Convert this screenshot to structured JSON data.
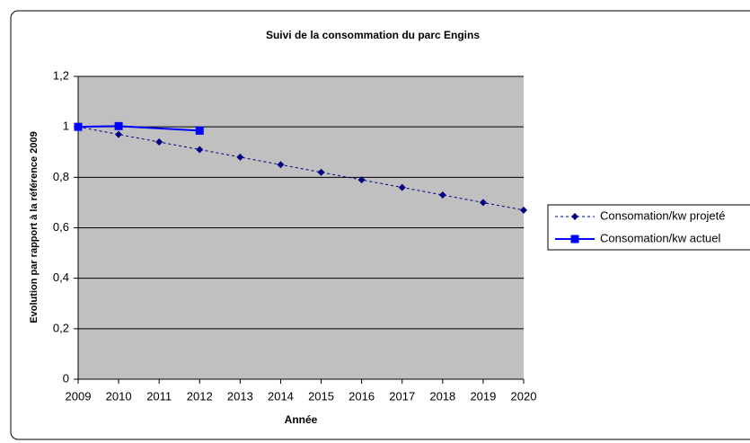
{
  "chart_data": {
    "type": "line",
    "title": "Suivi de la consommation du parc Engins",
    "xlabel": "Année",
    "ylabel": "Evolution par rapport à la référence 2009",
    "series": [
      {
        "name": "Consomation/kw projeté",
        "color": "#000080",
        "marker": "diamond",
        "dash": true,
        "x": [
          2009,
          2010,
          2011,
          2012,
          2013,
          2014,
          2015,
          2016,
          2017,
          2018,
          2019,
          2020
        ],
        "values": [
          1,
          0.97,
          0.94,
          0.91,
          0.88,
          0.85,
          0.82,
          0.79,
          0.76,
          0.73,
          0.7,
          0.67
        ]
      },
      {
        "name": "Consomation/kw actuel",
        "color": "#0000ff",
        "marker": "square",
        "dash": false,
        "x": [
          2009,
          2010,
          2012
        ],
        "values": [
          1,
          1.003,
          0.985
        ]
      }
    ],
    "xlim": [
      2009,
      2020
    ],
    "xticks": [
      2009,
      2010,
      2011,
      2012,
      2013,
      2014,
      2015,
      2016,
      2017,
      2018,
      2019,
      2020
    ],
    "ylim": [
      0,
      1.2
    ],
    "yticks": [
      0,
      {
        "value": 0.2,
        "label": "0,2"
      },
      {
        "value": 0.4,
        "label": "0,4"
      },
      {
        "value": 0.6,
        "label": "0,6"
      },
      {
        "value": 0.8,
        "label": "0,8"
      },
      1,
      {
        "value": 1.2,
        "label": "1,2"
      }
    ],
    "grid": true,
    "legend": "right"
  }
}
